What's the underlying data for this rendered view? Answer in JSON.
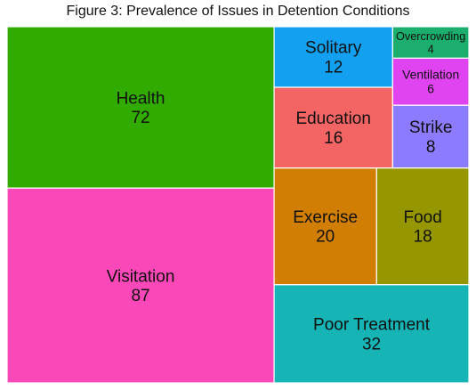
{
  "chart_data": {
    "type": "treemap",
    "title": "Figure 3: Prevalence of Issues in Detention Conditions",
    "cells": [
      {
        "label": "Visitation",
        "value": 87,
        "color": "#fb48b8"
      },
      {
        "label": "Health",
        "value": 72,
        "color": "#31ab00"
      },
      {
        "label": "Poor Treatment",
        "value": 32,
        "color": "#17b4b5"
      },
      {
        "label": "Exercise",
        "value": 20,
        "color": "#d17e04"
      },
      {
        "label": "Food",
        "value": 18,
        "color": "#969600"
      },
      {
        "label": "Education",
        "value": 16,
        "color": "#f36464"
      },
      {
        "label": "Solitary",
        "value": 12,
        "color": "#14a0f0"
      },
      {
        "label": "Strike",
        "value": 8,
        "color": "#8a7cfc"
      },
      {
        "label": "Ventilation",
        "value": 6,
        "color": "#e044f0"
      },
      {
        "label": "Overcrowding",
        "value": 4,
        "color": "#1cae6c"
      }
    ]
  }
}
